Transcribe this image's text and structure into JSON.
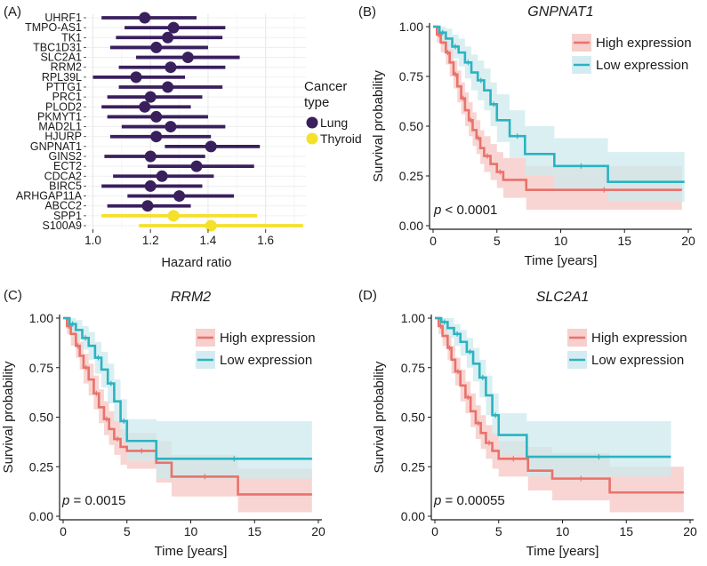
{
  "chart_data": [
    {
      "panel": "(A)",
      "type": "forest",
      "xlabel": "Hazard ratio",
      "xlim": [
        0.98,
        1.74
      ],
      "xticks": [
        1.0,
        1.2,
        1.4,
        1.6
      ],
      "xtick_labels": [
        "1.0",
        "1.2",
        "1.4",
        "1.6"
      ],
      "legend_title_line1": "Cancer",
      "legend_title_line2": "type",
      "groups": [
        {
          "name": "Lung",
          "color": "#3a1f5d"
        },
        {
          "name": "Thyroid",
          "color": "#f5e02a"
        }
      ],
      "genes": [
        {
          "label": "UHRF1",
          "group": "Lung",
          "hr": 1.18,
          "lo": 1.03,
          "hi": 1.36
        },
        {
          "label": "TMPO-AS1",
          "group": "Lung",
          "hr": 1.28,
          "lo": 1.11,
          "hi": 1.46
        },
        {
          "label": "TK1",
          "group": "Lung",
          "hr": 1.26,
          "lo": 1.08,
          "hi": 1.45
        },
        {
          "label": "TBC1D31",
          "group": "Lung",
          "hr": 1.22,
          "lo": 1.06,
          "hi": 1.4
        },
        {
          "label": "SLC2A1",
          "group": "Lung",
          "hr": 1.33,
          "lo": 1.15,
          "hi": 1.51
        },
        {
          "label": "RRM2",
          "group": "Lung",
          "hr": 1.27,
          "lo": 1.09,
          "hi": 1.46
        },
        {
          "label": "RPL39L",
          "group": "Lung",
          "hr": 1.15,
          "lo": 1.0,
          "hi": 1.32
        },
        {
          "label": "PTTG1",
          "group": "Lung",
          "hr": 1.26,
          "lo": 1.09,
          "hi": 1.45
        },
        {
          "label": "PRC1",
          "group": "Lung",
          "hr": 1.2,
          "lo": 1.05,
          "hi": 1.38
        },
        {
          "label": "PLOD2",
          "group": "Lung",
          "hr": 1.18,
          "lo": 1.03,
          "hi": 1.34
        },
        {
          "label": "PKMYT1",
          "group": "Lung",
          "hr": 1.22,
          "lo": 1.05,
          "hi": 1.4
        },
        {
          "label": "MAD2L1",
          "group": "Lung",
          "hr": 1.27,
          "lo": 1.1,
          "hi": 1.46
        },
        {
          "label": "HJURP",
          "group": "Lung",
          "hr": 1.22,
          "lo": 1.06,
          "hi": 1.41
        },
        {
          "label": "GNPNAT1",
          "group": "Lung",
          "hr": 1.41,
          "lo": 1.25,
          "hi": 1.58
        },
        {
          "label": "GINS2",
          "group": "Lung",
          "hr": 1.2,
          "lo": 1.04,
          "hi": 1.39
        },
        {
          "label": "ECT2",
          "group": "Lung",
          "hr": 1.36,
          "lo": 1.19,
          "hi": 1.56
        },
        {
          "label": "CDCA2",
          "group": "Lung",
          "hr": 1.24,
          "lo": 1.07,
          "hi": 1.42
        },
        {
          "label": "BIRC5",
          "group": "Lung",
          "hr": 1.2,
          "lo": 1.03,
          "hi": 1.38
        },
        {
          "label": "ARHGAP11A",
          "group": "Lung",
          "hr": 1.3,
          "lo": 1.12,
          "hi": 1.49
        },
        {
          "label": "ABCC2",
          "group": "Lung",
          "hr": 1.19,
          "lo": 1.05,
          "hi": 1.34
        },
        {
          "label": "SPP1",
          "group": "Thyroid",
          "hr": 1.28,
          "lo": 1.03,
          "hi": 1.57
        },
        {
          "label": "S100A9",
          "group": "Thyroid",
          "hr": 1.41,
          "lo": 1.16,
          "hi": 1.73
        }
      ]
    },
    {
      "panel": "(B)",
      "type": "line",
      "title": "GNPNAT1",
      "xlabel": "Time [years]",
      "ylabel": "Survival probability",
      "xlim": [
        0,
        20
      ],
      "ylim": [
        0,
        1
      ],
      "xticks": [
        0,
        5,
        10,
        15,
        20
      ],
      "yticks": [
        0,
        0.25,
        0.5,
        0.75,
        1.0
      ],
      "ytick_labels": [
        "0.00",
        "0.25",
        "0.50",
        "0.75",
        "1.00"
      ],
      "pvalue": "p < 0.0001",
      "series": [
        {
          "name": "High expression",
          "color": "#e8726b",
          "band": "#f6c7c3",
          "x": [
            0,
            0.3,
            0.6,
            1.0,
            1.3,
            1.6,
            1.9,
            2.2,
            2.5,
            2.8,
            3.1,
            3.4,
            3.7,
            4.0,
            4.5,
            5.0,
            5.5,
            7.3,
            19.5
          ],
          "y": [
            1,
            0.96,
            0.92,
            0.87,
            0.82,
            0.76,
            0.7,
            0.64,
            0.58,
            0.53,
            0.48,
            0.44,
            0.39,
            0.35,
            0.31,
            0.27,
            0.23,
            0.18,
            0.18
          ],
          "lo": [
            1,
            0.92,
            0.87,
            0.81,
            0.75,
            0.69,
            0.62,
            0.56,
            0.5,
            0.45,
            0.4,
            0.36,
            0.31,
            0.27,
            0.23,
            0.19,
            0.14,
            0.08,
            0.08
          ],
          "hi": [
            1,
            1.0,
            0.97,
            0.93,
            0.89,
            0.83,
            0.78,
            0.72,
            0.67,
            0.62,
            0.57,
            0.53,
            0.48,
            0.45,
            0.41,
            0.37,
            0.34,
            0.3,
            0.3
          ]
        },
        {
          "name": "Low expression",
          "color": "#2bb3c0",
          "band": "#cde9ee",
          "x": [
            0,
            0.5,
            1.0,
            1.5,
            2.0,
            2.5,
            3.0,
            3.5,
            4.0,
            4.5,
            5.0,
            6.0,
            7.2,
            9.5,
            13.7,
            19.7
          ],
          "y": [
            1,
            0.97,
            0.94,
            0.9,
            0.87,
            0.82,
            0.77,
            0.73,
            0.68,
            0.61,
            0.53,
            0.45,
            0.36,
            0.3,
            0.22,
            0.22
          ],
          "lo": [
            1,
            0.93,
            0.89,
            0.84,
            0.8,
            0.74,
            0.68,
            0.63,
            0.58,
            0.5,
            0.42,
            0.34,
            0.25,
            0.18,
            0.12,
            0.12
          ],
          "hi": [
            1,
            1.0,
            0.99,
            0.96,
            0.94,
            0.9,
            0.86,
            0.83,
            0.79,
            0.72,
            0.66,
            0.58,
            0.5,
            0.44,
            0.37,
            0.37
          ]
        }
      ]
    },
    {
      "panel": "(C)",
      "type": "line",
      "title": "RRM2",
      "xlabel": "Time [years]",
      "ylabel": "Survival probability",
      "xlim": [
        0,
        20
      ],
      "ylim": [
        0,
        1
      ],
      "xticks": [
        0,
        5,
        10,
        15,
        20
      ],
      "yticks": [
        0,
        0.25,
        0.5,
        0.75,
        1.0
      ],
      "ytick_labels": [
        "0.00",
        "0.25",
        "0.50",
        "0.75",
        "1.00"
      ],
      "pvalue": "p = 0.0015",
      "series": [
        {
          "name": "High expression",
          "color": "#e8726b",
          "band": "#f6c7c3",
          "x": [
            0,
            0.3,
            0.6,
            1.0,
            1.3,
            1.6,
            2.0,
            2.4,
            2.8,
            3.2,
            3.6,
            4.0,
            4.5,
            5.0,
            7.3,
            8.5,
            13.7,
            19.5
          ],
          "y": [
            1,
            0.96,
            0.92,
            0.86,
            0.81,
            0.75,
            0.69,
            0.62,
            0.55,
            0.49,
            0.44,
            0.39,
            0.35,
            0.33,
            0.27,
            0.2,
            0.11,
            0.11
          ],
          "lo": [
            1,
            0.92,
            0.86,
            0.8,
            0.74,
            0.67,
            0.61,
            0.54,
            0.47,
            0.41,
            0.36,
            0.31,
            0.26,
            0.24,
            0.17,
            0.1,
            0.02,
            0.02
          ],
          "hi": [
            1,
            1.0,
            0.97,
            0.92,
            0.88,
            0.82,
            0.77,
            0.71,
            0.64,
            0.58,
            0.53,
            0.48,
            0.44,
            0.42,
            0.38,
            0.31,
            0.24,
            0.24
          ]
        },
        {
          "name": "Low expression",
          "color": "#2bb3c0",
          "band": "#cde9ee",
          "x": [
            0,
            0.5,
            1.0,
            1.5,
            2.0,
            2.5,
            3.0,
            3.5,
            4.0,
            4.5,
            5.0,
            7.3,
            19.5
          ],
          "y": [
            1,
            0.97,
            0.94,
            0.9,
            0.86,
            0.8,
            0.74,
            0.67,
            0.58,
            0.48,
            0.38,
            0.29,
            0.29
          ],
          "lo": [
            1,
            0.93,
            0.89,
            0.84,
            0.79,
            0.72,
            0.65,
            0.57,
            0.48,
            0.38,
            0.28,
            0.19,
            0.19
          ],
          "hi": [
            1,
            1.0,
            0.99,
            0.96,
            0.93,
            0.88,
            0.83,
            0.77,
            0.69,
            0.59,
            0.49,
            0.48,
            0.48
          ]
        }
      ]
    },
    {
      "panel": "(D)",
      "type": "line",
      "title": "SLC2A1",
      "xlabel": "Time [years]",
      "ylabel": "Survival probability",
      "xlim": [
        0,
        20
      ],
      "ylim": [
        0,
        1
      ],
      "xticks": [
        0,
        5,
        10,
        15,
        20
      ],
      "yticks": [
        0,
        0.25,
        0.5,
        0.75,
        1.0
      ],
      "ytick_labels": [
        "0.00",
        "0.25",
        "0.50",
        "0.75",
        "1.00"
      ],
      "pvalue": "p = 0.00055",
      "series": [
        {
          "name": "High expression",
          "color": "#e8726b",
          "band": "#f6c7c3",
          "x": [
            0,
            0.3,
            0.6,
            1.0,
            1.3,
            1.6,
            2.0,
            2.4,
            2.8,
            3.2,
            3.6,
            4.0,
            4.5,
            5.0,
            7.3,
            9.2,
            13.7,
            19.5
          ],
          "y": [
            1,
            0.96,
            0.91,
            0.85,
            0.79,
            0.73,
            0.66,
            0.6,
            0.53,
            0.47,
            0.42,
            0.37,
            0.33,
            0.29,
            0.23,
            0.19,
            0.12,
            0.12
          ],
          "lo": [
            1,
            0.92,
            0.86,
            0.79,
            0.72,
            0.66,
            0.58,
            0.52,
            0.45,
            0.39,
            0.34,
            0.29,
            0.24,
            0.2,
            0.13,
            0.08,
            0.02,
            0.02
          ],
          "hi": [
            1,
            1.0,
            0.96,
            0.91,
            0.86,
            0.8,
            0.74,
            0.68,
            0.62,
            0.56,
            0.51,
            0.46,
            0.42,
            0.38,
            0.35,
            0.32,
            0.25,
            0.25
          ]
        },
        {
          "name": "Low expression",
          "color": "#2bb3c0",
          "band": "#cde9ee",
          "x": [
            0,
            0.5,
            1.0,
            1.5,
            2.0,
            2.5,
            3.0,
            3.5,
            4.0,
            4.5,
            5.0,
            7.2,
            18.5
          ],
          "y": [
            1,
            0.98,
            0.95,
            0.92,
            0.88,
            0.83,
            0.77,
            0.7,
            0.61,
            0.51,
            0.41,
            0.3,
            0.3
          ],
          "lo": [
            1,
            0.94,
            0.9,
            0.86,
            0.81,
            0.75,
            0.68,
            0.6,
            0.51,
            0.41,
            0.31,
            0.2,
            0.2
          ],
          "hi": [
            1,
            1.0,
            1.0,
            0.97,
            0.94,
            0.9,
            0.85,
            0.79,
            0.71,
            0.62,
            0.52,
            0.48,
            0.48
          ]
        }
      ]
    }
  ]
}
